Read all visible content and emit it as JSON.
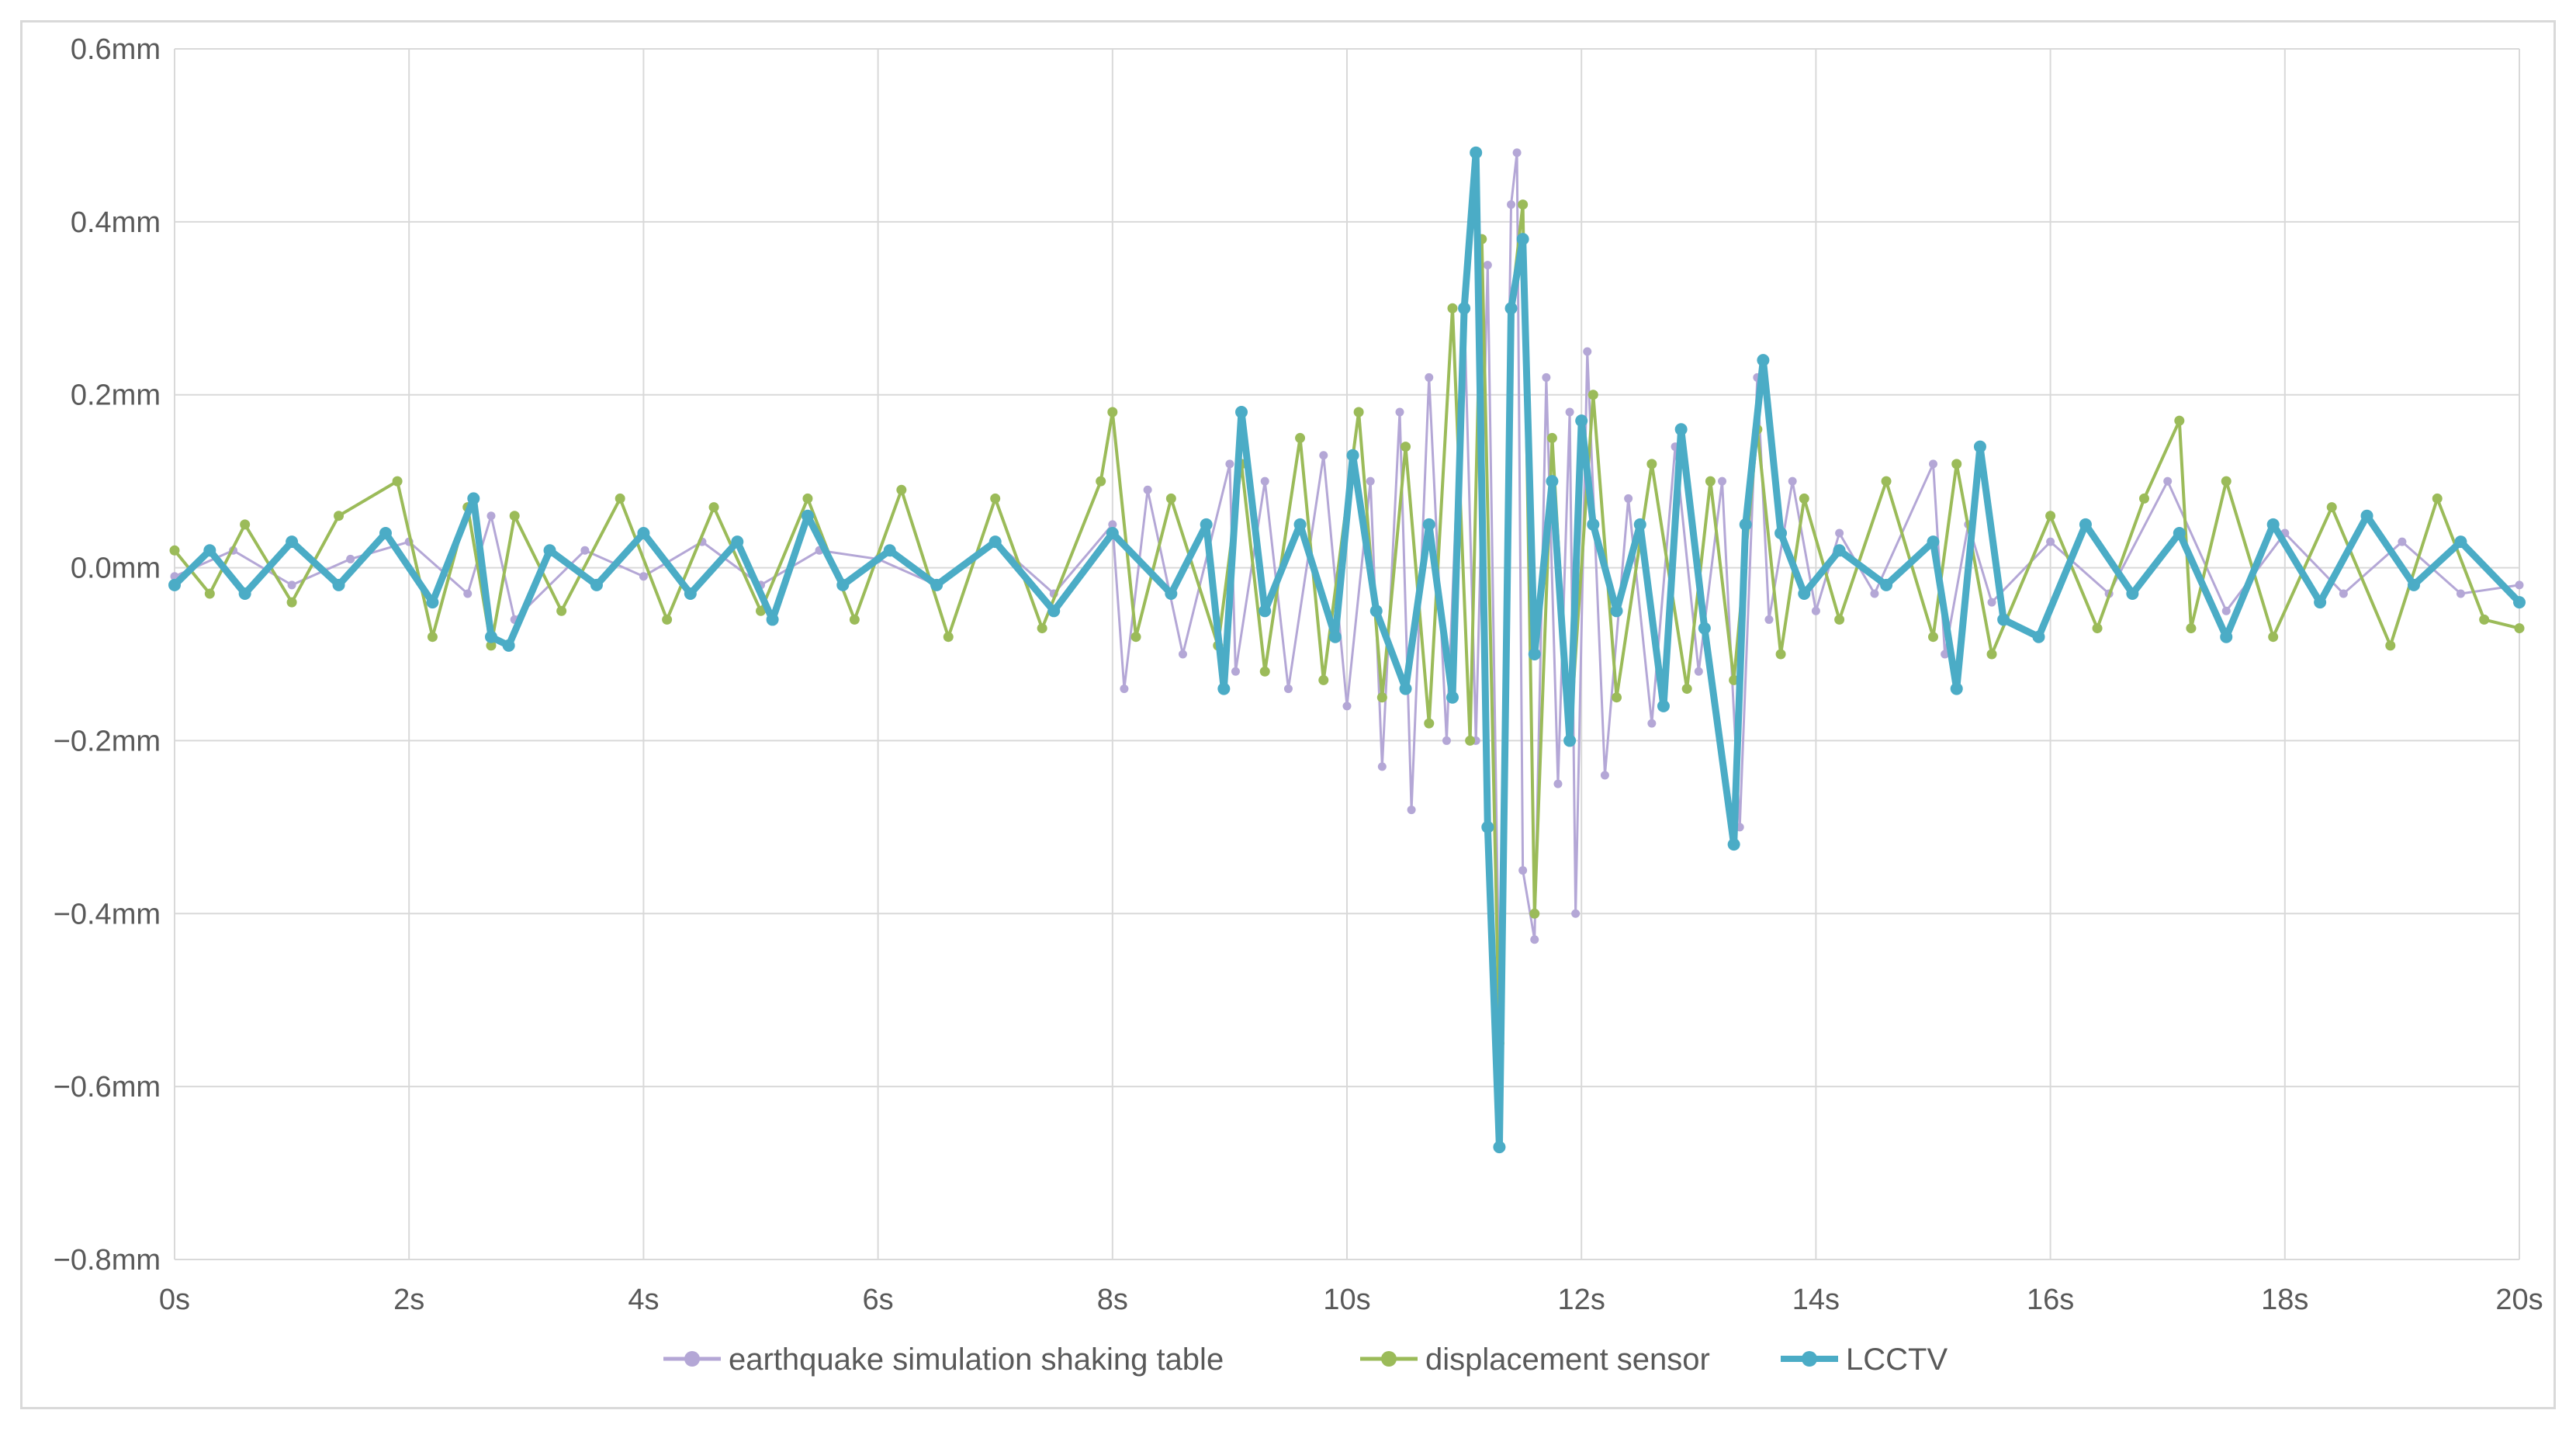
{
  "chart_data": {
    "type": "line",
    "title": "",
    "xlabel": "",
    "ylabel": "",
    "xlim": [
      0,
      20
    ],
    "ylim": [
      -0.8,
      0.6
    ],
    "x_ticks": [
      0,
      2,
      4,
      6,
      8,
      10,
      12,
      14,
      16,
      18,
      20
    ],
    "x_tick_labels": [
      "0s",
      "2s",
      "4s",
      "6s",
      "8s",
      "10s",
      "12s",
      "14s",
      "16s",
      "18s",
      "20s"
    ],
    "y_ticks": [
      0.6,
      0.4,
      0.2,
      0.0,
      -0.2,
      -0.4,
      -0.6,
      -0.8
    ],
    "y_tick_labels": [
      "0.6mm",
      "0.4mm",
      "0.2mm",
      "0.0mm",
      "−0.2mm",
      "−0.4mm",
      "−0.6mm",
      "−0.8mm"
    ],
    "grid": true,
    "legend_position": "bottom",
    "series": [
      {
        "name": "earthquake simulation shaking table",
        "color": "#b4a7d6",
        "marker": "circle",
        "x": [
          0,
          0.5,
          1,
          1.5,
          2,
          2.5,
          2.7,
          2.9,
          3.5,
          4,
          4.5,
          5,
          5.5,
          6,
          6.5,
          7,
          7.5,
          8,
          8.1,
          8.3,
          8.6,
          9,
          9.05,
          9.3,
          9.5,
          9.8,
          10,
          10.2,
          10.3,
          10.45,
          10.55,
          10.7,
          10.85,
          11,
          11.1,
          11.2,
          11.3,
          11.4,
          11.45,
          11.5,
          11.6,
          11.7,
          11.8,
          11.9,
          11.95,
          12.05,
          12.2,
          12.4,
          12.6,
          12.8,
          13,
          13.2,
          13.35,
          13.5,
          13.6,
          13.8,
          14,
          14.2,
          14.5,
          15,
          15.1,
          15.3,
          15.5,
          16,
          16.5,
          17,
          17.5,
          18,
          18.5,
          19,
          19.5,
          20
        ],
        "y": [
          -0.01,
          0.02,
          -0.02,
          0.01,
          0.03,
          -0.03,
          0.06,
          -0.06,
          0.02,
          -0.01,
          0.03,
          -0.02,
          0.02,
          0.01,
          -0.02,
          0.03,
          -0.03,
          0.05,
          -0.14,
          0.09,
          -0.1,
          0.12,
          -0.12,
          0.1,
          -0.14,
          0.13,
          -0.16,
          0.1,
          -0.23,
          0.18,
          -0.28,
          0.22,
          -0.2,
          0.3,
          -0.2,
          0.35,
          -0.5,
          0.42,
          0.48,
          -0.35,
          -0.43,
          0.22,
          -0.25,
          0.18,
          -0.4,
          0.25,
          -0.24,
          0.08,
          -0.18,
          0.14,
          -0.12,
          0.1,
          -0.3,
          0.22,
          -0.06,
          0.1,
          -0.05,
          0.04,
          -0.03,
          0.12,
          -0.1,
          0.05,
          -0.04,
          0.03,
          -0.03,
          0.1,
          -0.05,
          0.04,
          -0.03,
          0.03,
          -0.03,
          -0.02
        ]
      },
      {
        "name": "displacement sensor",
        "color": "#9bbb59",
        "marker": "circle",
        "x": [
          0,
          0.3,
          0.6,
          1,
          1.4,
          1.9,
          2.2,
          2.5,
          2.7,
          2.9,
          3.3,
          3.8,
          4.2,
          4.6,
          5,
          5.4,
          5.8,
          6.2,
          6.6,
          7,
          7.4,
          7.9,
          8,
          8.2,
          8.5,
          8.9,
          9.1,
          9.3,
          9.6,
          9.8,
          10.1,
          10.3,
          10.5,
          10.7,
          10.9,
          11.05,
          11.15,
          11.3,
          11.4,
          11.5,
          11.6,
          11.75,
          11.9,
          12.1,
          12.3,
          12.6,
          12.9,
          13.1,
          13.3,
          13.5,
          13.7,
          13.9,
          14.2,
          14.6,
          15,
          15.2,
          15.5,
          16,
          16.4,
          16.8,
          17.1,
          17.2,
          17.5,
          17.9,
          18.4,
          18.9,
          19.3,
          19.7,
          20
        ],
        "y": [
          0.02,
          -0.03,
          0.05,
          -0.04,
          0.06,
          0.1,
          -0.08,
          0.07,
          -0.09,
          0.06,
          -0.05,
          0.08,
          -0.06,
          0.07,
          -0.05,
          0.08,
          -0.06,
          0.09,
          -0.08,
          0.08,
          -0.07,
          0.1,
          0.18,
          -0.08,
          0.08,
          -0.09,
          0.12,
          -0.12,
          0.15,
          -0.13,
          0.18,
          -0.15,
          0.14,
          -0.18,
          0.3,
          -0.2,
          0.38,
          -0.55,
          0.3,
          0.42,
          -0.4,
          0.15,
          -0.2,
          0.2,
          -0.15,
          0.12,
          -0.14,
          0.1,
          -0.13,
          0.16,
          -0.1,
          0.08,
          -0.06,
          0.1,
          -0.08,
          0.12,
          -0.1,
          0.06,
          -0.07,
          0.08,
          0.17,
          -0.07,
          0.1,
          -0.08,
          0.07,
          -0.09,
          0.08,
          -0.06,
          -0.07
        ]
      },
      {
        "name": "LCCTV",
        "color": "#4bacc6",
        "marker": "circle",
        "x": [
          0,
          0.3,
          0.6,
          1,
          1.4,
          1.8,
          2.2,
          2.55,
          2.7,
          2.85,
          3.2,
          3.6,
          4,
          4.4,
          4.8,
          5.1,
          5.4,
          5.7,
          6.1,
          6.5,
          7,
          7.5,
          8,
          8.5,
          8.8,
          8.95,
          9.1,
          9.3,
          9.6,
          9.9,
          10.05,
          10.25,
          10.5,
          10.7,
          10.9,
          11.0,
          11.1,
          11.2,
          11.3,
          11.4,
          11.5,
          11.6,
          11.75,
          11.9,
          12.0,
          12.1,
          12.3,
          12.5,
          12.7,
          12.85,
          13.05,
          13.3,
          13.4,
          13.55,
          13.7,
          13.9,
          14.2,
          14.6,
          15,
          15.2,
          15.4,
          15.6,
          15.9,
          16.3,
          16.7,
          17.1,
          17.5,
          17.9,
          18.3,
          18.7,
          19.1,
          19.5,
          20
        ],
        "y": [
          -0.02,
          0.02,
          -0.03,
          0.03,
          -0.02,
          0.04,
          -0.04,
          0.08,
          -0.08,
          -0.09,
          0.02,
          -0.02,
          0.04,
          -0.03,
          0.03,
          -0.06,
          0.06,
          -0.02,
          0.02,
          -0.02,
          0.03,
          -0.05,
          0.04,
          -0.03,
          0.05,
          -0.14,
          0.18,
          -0.05,
          0.05,
          -0.08,
          0.13,
          -0.05,
          -0.14,
          0.05,
          -0.15,
          0.3,
          0.48,
          -0.3,
          -0.67,
          0.3,
          0.38,
          -0.1,
          0.1,
          -0.2,
          0.17,
          0.05,
          -0.05,
          0.05,
          -0.16,
          0.16,
          -0.07,
          -0.32,
          0.05,
          0.24,
          0.04,
          -0.03,
          0.02,
          -0.02,
          0.03,
          -0.14,
          0.14,
          -0.06,
          -0.08,
          0.05,
          -0.03,
          0.04,
          -0.08,
          0.05,
          -0.04,
          0.06,
          -0.02,
          0.03,
          -0.04
        ]
      }
    ]
  }
}
